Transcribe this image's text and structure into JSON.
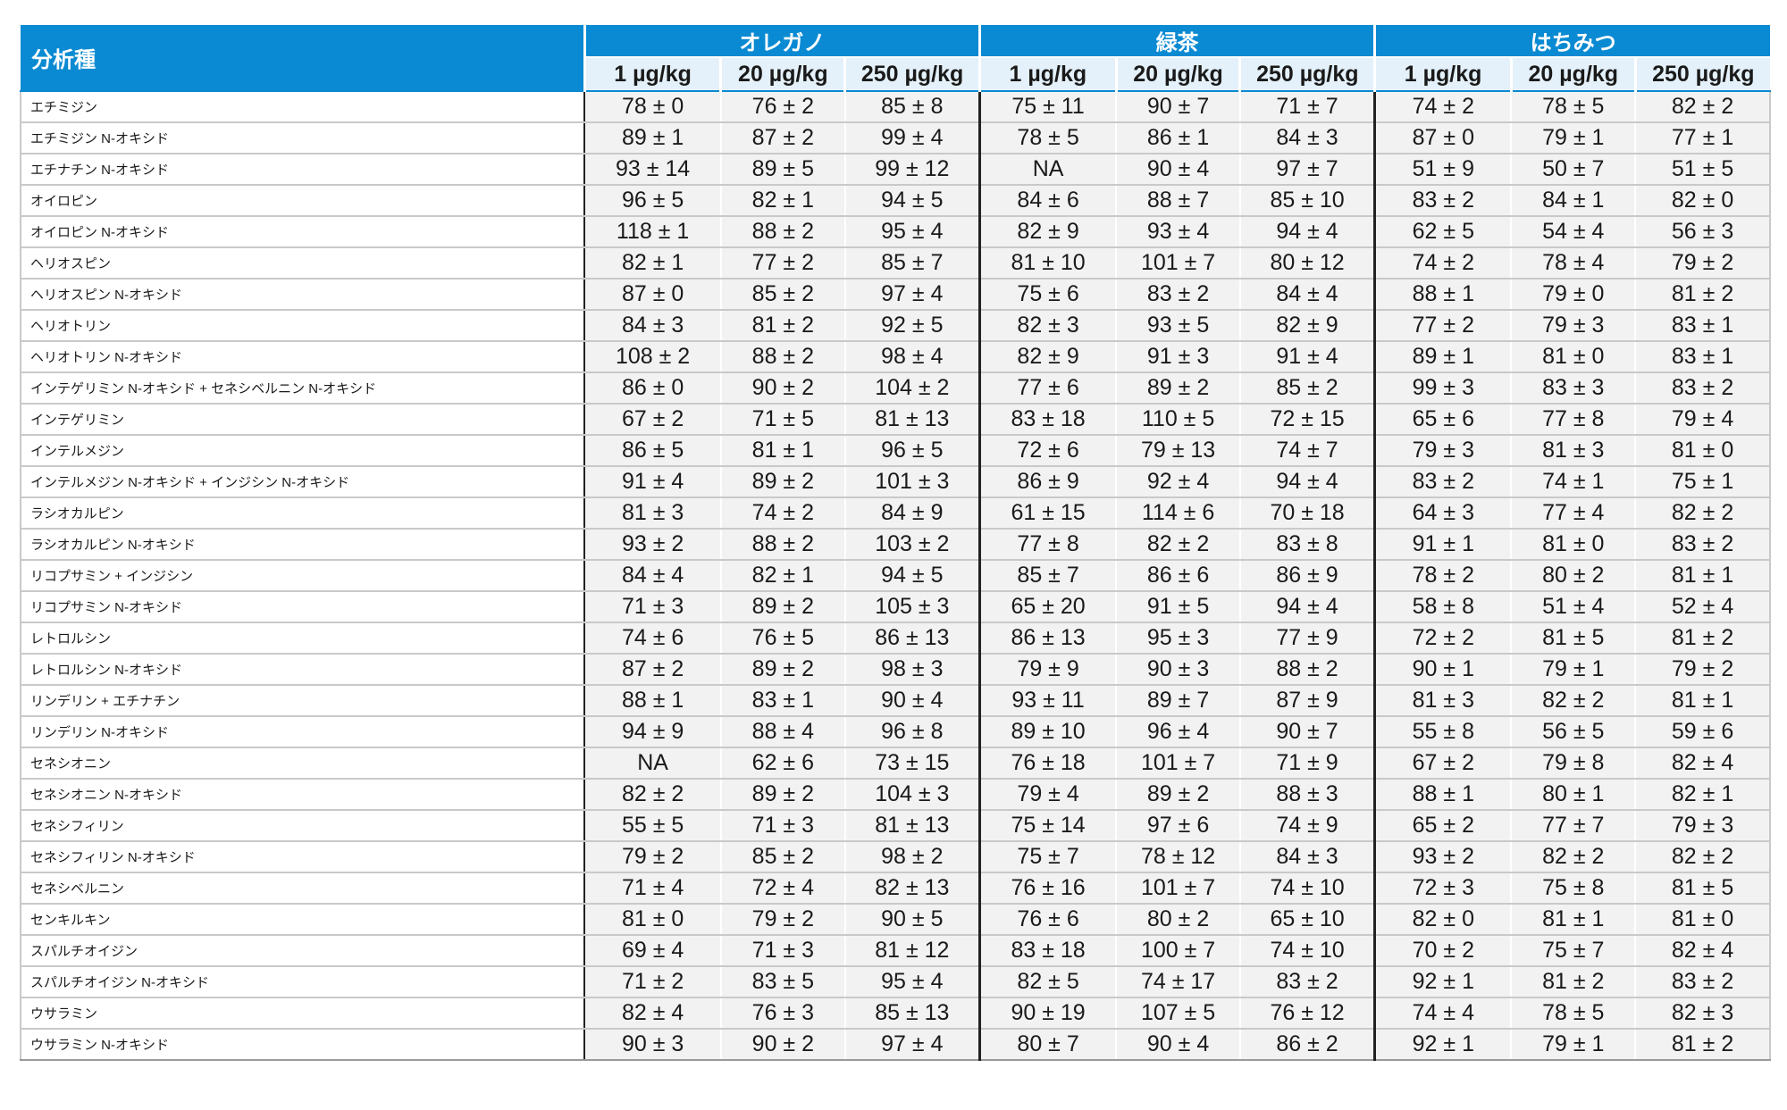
{
  "table": {
    "analyte_header": "分析種",
    "groups": [
      "オレガノ",
      "緑茶",
      "はちみつ"
    ],
    "concentrations": [
      "1 µg/kg",
      "20 µg/kg",
      "250 µg/kg"
    ],
    "rows": [
      {
        "name": "エチミジン",
        "values": [
          "78 ± 0",
          "76 ± 2",
          "85 ± 8",
          "75 ± 11",
          "90 ± 7",
          "71 ± 7",
          "74 ± 2",
          "78 ± 5",
          "82 ± 2"
        ]
      },
      {
        "name": "エチミジン N-オキシド",
        "values": [
          "89 ± 1",
          "87 ± 2",
          "99 ± 4",
          "78 ± 5",
          "86 ± 1",
          "84 ± 3",
          "87 ± 0",
          "79 ± 1",
          "77 ± 1"
        ]
      },
      {
        "name": "エチナチン N-オキシド",
        "values": [
          "93 ± 14",
          "89 ± 5",
          "99 ± 12",
          "NA",
          "90 ± 4",
          "97 ± 7",
          "51 ± 9",
          "50 ± 7",
          "51 ± 5"
        ]
      },
      {
        "name": "オイロピン",
        "values": [
          "96 ± 5",
          "82 ± 1",
          "94 ± 5",
          "84 ± 6",
          "88 ± 7",
          "85 ± 10",
          "83 ± 2",
          "84 ± 1",
          "82 ± 0"
        ]
      },
      {
        "name": "オイロピン N-オキシド",
        "values": [
          "118 ± 1",
          "88 ± 2",
          "95 ± 4",
          "82 ± 9",
          "93 ± 4",
          "94 ± 4",
          "62 ± 5",
          "54 ± 4",
          "56 ± 3"
        ]
      },
      {
        "name": "ヘリオスピン",
        "values": [
          "82 ± 1",
          "77 ± 2",
          "85 ± 7",
          "81 ± 10",
          "101 ± 7",
          "80 ± 12",
          "74 ± 2",
          "78 ± 4",
          "79 ± 2"
        ]
      },
      {
        "name": "ヘリオスピン N-オキシド",
        "values": [
          "87 ± 0",
          "85 ± 2",
          "97 ± 4",
          "75 ± 6",
          "83 ± 2",
          "84 ± 4",
          "88 ± 1",
          "79 ± 0",
          "81 ± 2"
        ]
      },
      {
        "name": "ヘリオトリン",
        "values": [
          "84 ± 3",
          "81 ± 2",
          "92 ± 5",
          "82 ± 3",
          "93 ± 5",
          "82 ± 9",
          "77 ± 2",
          "79 ± 3",
          "83 ± 1"
        ]
      },
      {
        "name": "ヘリオトリン N-オキシド",
        "values": [
          "108 ± 2",
          "88 ± 2",
          "98 ± 4",
          "82 ± 9",
          "91 ± 3",
          "91 ± 4",
          "89 ± 1",
          "81 ± 0",
          "83 ± 1"
        ]
      },
      {
        "name": "インテゲリミン N-オキシド + セネシベルニン N-オキシド",
        "values": [
          "86 ± 0",
          "90 ± 2",
          "104 ± 2",
          "77 ± 6",
          "89 ± 2",
          "85 ± 2",
          "99 ± 3",
          "83 ± 3",
          "83 ± 2"
        ]
      },
      {
        "name": "インテゲリミン",
        "values": [
          "67 ± 2",
          "71 ± 5",
          "81 ± 13",
          "83 ± 18",
          "110 ± 5",
          "72 ± 15",
          "65 ± 6",
          "77 ± 8",
          "79 ± 4"
        ]
      },
      {
        "name": "インテルメジン",
        "values": [
          "86 ± 5",
          "81 ± 1",
          "96 ± 5",
          "72 ± 6",
          "79 ± 13",
          "74 ± 7",
          "79 ± 3",
          "81 ± 3",
          "81 ± 0"
        ]
      },
      {
        "name": "インテルメジン N-オキシド + インジシン N-オキシド",
        "values": [
          "91 ± 4",
          "89 ± 2",
          "101 ± 3",
          "86 ± 9",
          "92 ± 4",
          "94 ± 4",
          "83 ± 2",
          "74 ± 1",
          "75 ± 1"
        ]
      },
      {
        "name": "ラシオカルピン",
        "values": [
          "81 ± 3",
          "74 ± 2",
          "84 ± 9",
          "61 ± 15",
          "114 ± 6",
          "70 ± 18",
          "64 ± 3",
          "77 ± 4",
          "82 ± 2"
        ]
      },
      {
        "name": "ラシオカルピン N-オキシド",
        "values": [
          "93 ± 2",
          "88 ± 2",
          "103 ± 2",
          "77 ± 8",
          "82 ± 2",
          "83 ± 8",
          "91 ± 1",
          "81 ± 0",
          "83 ± 2"
        ]
      },
      {
        "name": "リコプサミン + インジシン",
        "values": [
          "84 ± 4",
          "82 ± 1",
          "94 ± 5",
          "85 ± 7",
          "86 ± 6",
          "86 ± 9",
          "78 ± 2",
          "80 ± 2",
          "81 ± 1"
        ]
      },
      {
        "name": "リコプサミン N-オキシド",
        "values": [
          "71 ± 3",
          "89 ± 2",
          "105 ± 3",
          "65 ± 20",
          "91 ± 5",
          "94 ± 4",
          "58 ± 8",
          "51 ± 4",
          "52 ± 4"
        ]
      },
      {
        "name": "レトロルシン",
        "values": [
          "74 ± 6",
          "76 ± 5",
          "86 ± 13",
          "86 ± 13",
          "95 ± 3",
          "77 ± 9",
          "72 ± 2",
          "81 ± 5",
          "81 ± 2"
        ]
      },
      {
        "name": "レトロルシン N-オキシド",
        "values": [
          "87 ± 2",
          "89 ± 2",
          "98 ± 3",
          "79 ± 9",
          "90 ± 3",
          "88 ± 2",
          "90 ± 1",
          "79 ± 1",
          "79 ± 2"
        ]
      },
      {
        "name": "リンデリン + エチナチン",
        "values": [
          "88 ± 1",
          "83 ± 1",
          "90 ± 4",
          "93 ± 11",
          "89 ± 7",
          "87 ± 9",
          "81 ± 3",
          "82 ± 2",
          "81 ± 1"
        ]
      },
      {
        "name": "リンデリン N-オキシド",
        "values": [
          "94 ± 9",
          "88 ± 4",
          "96 ± 8",
          "89 ± 10",
          "96 ± 4",
          "90 ± 7",
          "55 ± 8",
          "56 ± 5",
          "59 ± 6"
        ]
      },
      {
        "name": "セネシオニン",
        "values": [
          "NA",
          "62 ± 6",
          "73 ± 15",
          "76 ± 18",
          "101 ± 7",
          "71 ± 9",
          "67 ± 2",
          "79 ± 8",
          "82 ± 4"
        ]
      },
      {
        "name": "セネシオニン N-オキシド",
        "values": [
          "82 ± 2",
          "89 ± 2",
          "104 ± 3",
          "79 ± 4",
          "89 ± 2",
          "88 ± 3",
          "88 ± 1",
          "80 ± 1",
          "82 ± 1"
        ]
      },
      {
        "name": "セネシフィリン",
        "values": [
          "55 ± 5",
          "71 ± 3",
          "81 ± 13",
          "75 ± 14",
          "97 ± 6",
          "74 ± 9",
          "65 ± 2",
          "77 ± 7",
          "79 ± 3"
        ]
      },
      {
        "name": "セネシフィリン N-オキシド",
        "values": [
          "79 ± 2",
          "85 ± 2",
          "98 ± 2",
          "75 ± 7",
          "78 ± 12",
          "84 ± 3",
          "93 ± 2",
          "82 ± 2",
          "82 ± 2"
        ]
      },
      {
        "name": "セネシベルニン",
        "values": [
          "71 ± 4",
          "72 ± 4",
          "82 ± 13",
          "76 ± 16",
          "101 ± 7",
          "74 ± 10",
          "72 ± 3",
          "75 ± 8",
          "81 ± 5"
        ]
      },
      {
        "name": "センキルキン",
        "values": [
          "81 ± 0",
          "79 ± 2",
          "90 ± 5",
          "76 ± 6",
          "80 ± 2",
          "65 ± 10",
          "82 ± 0",
          "81 ± 1",
          "81 ± 0"
        ]
      },
      {
        "name": "スパルチオイジン",
        "values": [
          "69 ± 4",
          "71 ± 3",
          "81 ± 12",
          "83 ± 18",
          "100 ± 7",
          "74 ± 10",
          "70 ± 2",
          "75 ± 7",
          "82 ± 4"
        ]
      },
      {
        "name": "スパルチオイジン N-オキシド",
        "values": [
          "71 ± 2",
          "83 ± 5",
          "95 ± 4",
          "82 ± 5",
          "74 ± 17",
          "83 ± 2",
          "92 ± 1",
          "81 ± 2",
          "83 ± 2"
        ]
      },
      {
        "name": "ウサラミン",
        "values": [
          "82 ± 4",
          "76 ± 3",
          "85 ± 13",
          "90 ± 19",
          "107 ± 5",
          "76 ± 12",
          "74 ± 4",
          "78 ± 5",
          "82 ± 3"
        ]
      },
      {
        "name": "ウサラミン N-オキシド",
        "values": [
          "90 ± 3",
          "90 ± 2",
          "97 ± 4",
          "80 ± 7",
          "90 ± 4",
          "86 ± 2",
          "92 ± 1",
          "79 ± 1",
          "81 ± 2"
        ]
      }
    ]
  }
}
